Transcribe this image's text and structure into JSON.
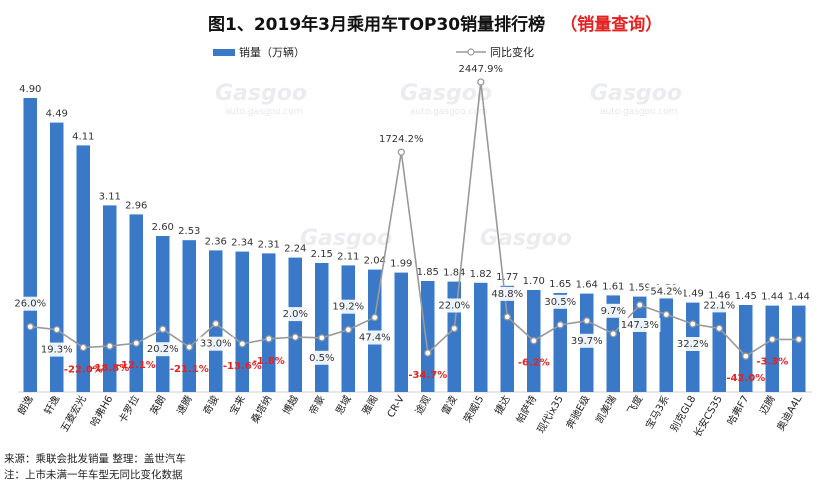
{
  "title_main": "图1、2019年3月乘用车TOP30销量排行榜",
  "title_link": "（销量查询）",
  "watermark": "Gasgoo",
  "watermark_sub": "auto.gasgoo.com",
  "footer": {
    "source": "来源：乘联会批发销量   整理：盖世汽车",
    "note": "注：上市未满一年车型无同比变化数据"
  },
  "colors": {
    "bar": "#3a78c8",
    "line": "#9a9a9a",
    "negative": "#e52222"
  },
  "chart_data": {
    "type": "bar",
    "categories": [
      "朗逸",
      "轩逸",
      "五菱宏光",
      "哈弗H6",
      "卡罗拉",
      "英朗",
      "速腾",
      "奇骏",
      "宝来",
      "桑塔纳",
      "博越",
      "帝豪",
      "思域",
      "雅阁",
      "CR-V",
      "途观",
      "雷凌",
      "荣威i5",
      "捷达",
      "帕萨特",
      "现代ix35",
      "奔驰E级",
      "凯美瑞",
      "飞度",
      "宝马3系",
      "别克GL8",
      "长安CS35",
      "哈弗F7",
      "迈腾",
      "奥迪A4L"
    ],
    "series": [
      {
        "name": "销量（万辆）",
        "type": "bar",
        "axis": "left",
        "values": [
          4.9,
          4.49,
          4.11,
          3.11,
          2.96,
          2.6,
          2.53,
          2.36,
          2.34,
          2.31,
          2.24,
          2.15,
          2.11,
          2.04,
          1.99,
          1.85,
          1.84,
          1.82,
          1.77,
          1.7,
          1.65,
          1.64,
          1.61,
          1.59,
          1.58,
          1.49,
          1.46,
          1.45,
          1.44,
          1.44
        ],
        "labels": [
          "4.90",
          "4.49",
          "4.11",
          "3.11",
          "2.96",
          "2.60",
          "2.53",
          "2.36",
          "2.34",
          "2.31",
          "2.24",
          "2.15",
          "2.11",
          "2.04",
          "1.99",
          "1.85",
          "1.84",
          "1.82",
          "1.77",
          "1.70",
          "1.65",
          "1.64",
          "1.61",
          "1.59",
          "1.58",
          "1.49",
          "1.46",
          "1.45",
          "1.44",
          "1.44"
        ]
      },
      {
        "name": "同比变化",
        "type": "line",
        "axis": "right",
        "values": [
          26.0,
          19.3,
          -22.0,
          -18.8,
          -12.1,
          20.2,
          -21.1,
          33.0,
          -13.6,
          -1.8,
          2.0,
          0.5,
          19.2,
          47.4,
          1724.2,
          -34.7,
          22.0,
          2447.9,
          48.8,
          -6.2,
          30.5,
          39.7,
          9.7,
          147.3,
          54.2,
          32.2,
          22.1,
          -42.0,
          -3.3,
          -3.3
        ],
        "labels": [
          "26.0%",
          "19.3%",
          "-22.0%",
          "-18.8%",
          "-12.1%",
          "20.2%",
          "-21.1%",
          "33.0%",
          "-13.6%",
          "-1.8%",
          "2.0%",
          "0.5%",
          "19.2%",
          "47.4%",
          "1724.2%",
          "-34.7%",
          "22.0%",
          "2447.9%",
          "48.8%",
          "-6.2%",
          "30.5%",
          "39.7%",
          "9.7%",
          "147.3%",
          "54.2%",
          "32.2%",
          "22.1%",
          "-42.0%",
          "-3.3%",
          ""
        ]
      }
    ],
    "ylim_left": [
      0,
      5.2
    ],
    "grid": false,
    "legend": "top-center"
  }
}
